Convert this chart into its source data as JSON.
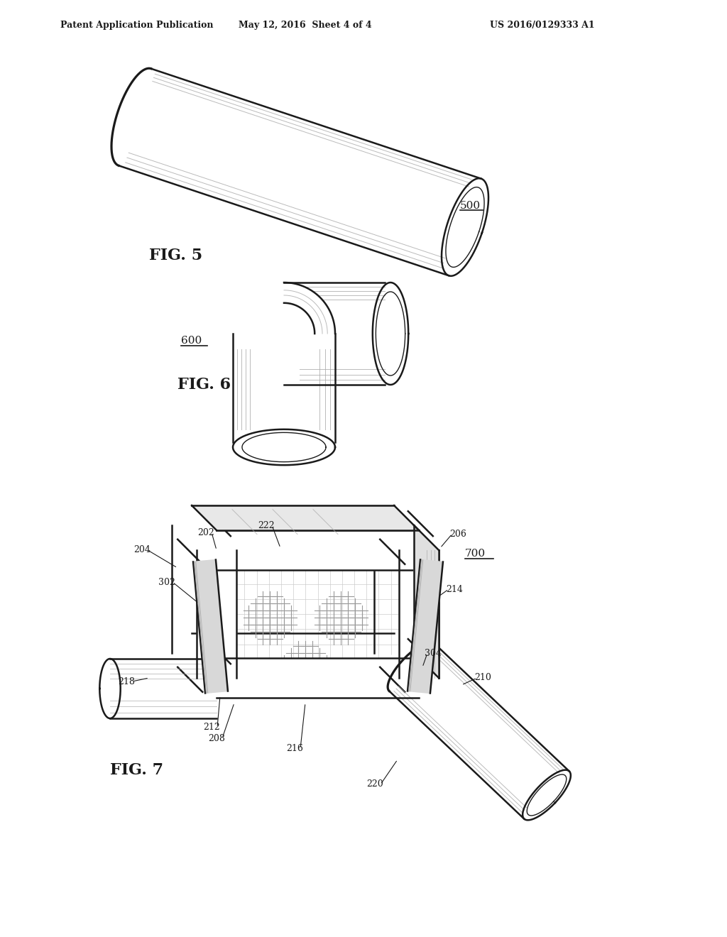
{
  "background_color": "#ffffff",
  "header_left": "Patent Application Publication",
  "header_mid": "May 12, 2016  Sheet 4 of 4",
  "header_right": "US 2016/0129333 A1",
  "fig5_label": "FIG. 5",
  "fig5_ref": "500",
  "fig6_label": "FIG. 6",
  "fig6_ref": "600",
  "fig7_label": "FIG. 7",
  "fig7_ref": "700",
  "line_color": "#1a1a1a",
  "shade_color": "#aaaaaa",
  "hatch_color": "#bbbbbb"
}
